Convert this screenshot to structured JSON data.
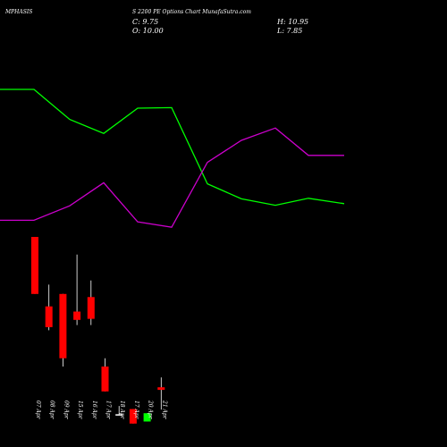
{
  "header": {
    "symbol": "MPHASIS",
    "title": "S 2200 PE Options Chart MunafaSutra.com",
    "close": "C: 9.75",
    "open": "O: 10.00",
    "high": "H: 10.95",
    "low": "L: 7.85"
  },
  "chart_data": {
    "type": "candlestick",
    "categories": [
      "07 Apr",
      "08 Apr",
      "09 Apr",
      "15 Apr",
      "16 Apr",
      "17 Apr",
      "18 Apr",
      "17 Apr",
      "20 Apr",
      "21 Apr"
    ],
    "candles": [
      {
        "open": 24.5,
        "high": 24.5,
        "low": 19.0,
        "close": 19.0,
        "color": "#ff0000"
      },
      {
        "open": 17.8,
        "high": 19.9,
        "low": 15.5,
        "close": 15.8,
        "color": "#ff0000"
      },
      {
        "open": 19.0,
        "high": 19.0,
        "low": 12.0,
        "close": 12.8,
        "color": "#ff0000"
      },
      {
        "open": 17.3,
        "high": 22.8,
        "low": 16.0,
        "close": 16.5,
        "color": "#ff0000"
      },
      {
        "open": 18.7,
        "high": 20.3,
        "low": 16.0,
        "close": 16.6,
        "color": "#ff0000"
      },
      {
        "open": 12.0,
        "high": 12.8,
        "low": 9.6,
        "close": 9.6,
        "color": "#ff0000"
      },
      {
        "open": 7.4,
        "high": 8.2,
        "low": 7.3,
        "close": 7.3,
        "color": "#ffffff"
      },
      {
        "open": 7.9,
        "high": 7.9,
        "low": 6.5,
        "close": 6.5,
        "color": "#ff0000"
      },
      {
        "open": 6.7,
        "high": 7.5,
        "low": 6.7,
        "close": 7.5,
        "color": "#00ff00"
      },
      {
        "open": 10.0,
        "high": 10.95,
        "low": 7.85,
        "close": 9.75,
        "color": "#ff0000"
      }
    ],
    "series": [
      {
        "color": "#00ff00",
        "x": [
          0,
          38,
          78,
          116,
          154,
          192,
          232,
          270,
          308,
          345,
          385
        ],
        "values": [
          52,
          52,
          46.4,
          43.8,
          48.5,
          48.6,
          34.4,
          31.6,
          30.4,
          31.7,
          30.7
        ]
      },
      {
        "color": "#cc00cc",
        "x": [
          0,
          38,
          78,
          116,
          154,
          192,
          232,
          270,
          308,
          345,
          385
        ],
        "values": [
          27.6,
          27.6,
          30.3,
          34.6,
          27.3,
          26.3,
          38.4,
          42.5,
          44.8,
          39.7,
          39.7
        ]
      }
    ]
  }
}
